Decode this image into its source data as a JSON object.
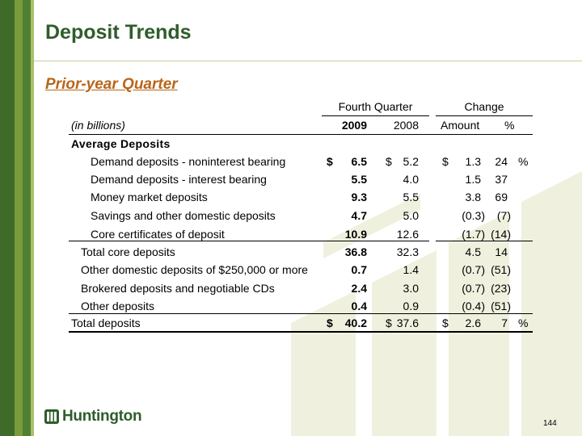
{
  "slide": {
    "title": "Deposit Trends",
    "subtitle": "Prior-year Quarter",
    "page_number": "144",
    "logo_text": "Huntington",
    "colors": {
      "title": "#2e5d2a",
      "subtitle": "#b8661a",
      "bar_dark": "#3e6b2a",
      "bar_mid": "#7a9b3c",
      "decor": "#eef0dc"
    }
  },
  "table": {
    "group_headers": {
      "fourth_quarter": "Fourth Quarter",
      "change": "Change"
    },
    "col_headers": {
      "label": "(in billions)",
      "y2009": "2009",
      "y2008": "2008",
      "amount": "Amount",
      "pct": "%"
    },
    "section_header": "Average Deposits",
    "rows": [
      {
        "label": "Demand deposits - noninterest bearing",
        "cur_sym": "$",
        "y2009": "6.5",
        "prior_sym": "$",
        "y2008": "5.2",
        "amt_sym": "$",
        "amount": "1.3",
        "pct": "24",
        "pct_sym": "%"
      },
      {
        "label": "Demand deposits - interest bearing",
        "y2009": "5.5",
        "y2008": "4.0",
        "amount": "1.5",
        "pct": "37"
      },
      {
        "label": "Money market deposits",
        "y2009": "9.3",
        "y2008": "5.5",
        "amount": "3.8",
        "pct": "69"
      },
      {
        "label": "Savings and other domestic deposits",
        "y2009": "4.7",
        "y2008": "5.0",
        "amount": "(0.3)",
        "pct": "(7)"
      },
      {
        "label": "Core certificates of deposit",
        "y2009": "10.9",
        "y2008": "12.6",
        "amount": "(1.7)",
        "pct": "(14)"
      },
      {
        "label": "Total core deposits",
        "y2009": "36.8",
        "y2008": "32.3",
        "amount": "4.5",
        "pct": "14"
      },
      {
        "label": "Other domestic deposits of $250,000 or more",
        "y2009": "0.7",
        "y2008": "1.4",
        "amount": "(0.7)",
        "pct": "(51)"
      },
      {
        "label": "Brokered deposits and negotiable CDs",
        "y2009": "2.4",
        "y2008": "3.0",
        "amount": "(0.7)",
        "pct": "(23)"
      },
      {
        "label": "Other deposits",
        "y2009": "0.4",
        "y2008": "0.9",
        "amount": "(0.4)",
        "pct": "(51)"
      },
      {
        "label": "Total deposits",
        "cur_sym": "$",
        "y2009": "40.2",
        "prior_sym": "$",
        "y2008": "37.6",
        "amt_sym": "$",
        "amount": "2.6",
        "pct": "7",
        "pct_sym": "%"
      }
    ]
  }
}
